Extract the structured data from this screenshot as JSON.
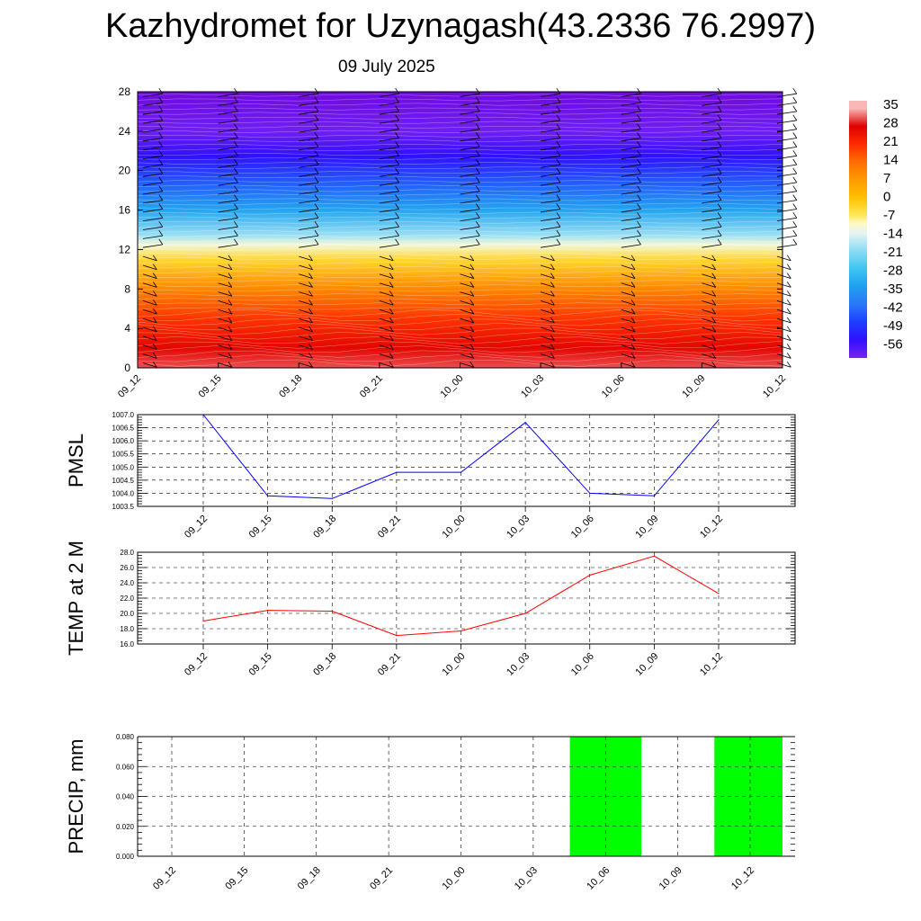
{
  "title": "Kazhydromet for Uzynagash(43.2336 76.2997)",
  "subtitle": "09 July 2025",
  "colors": {
    "pmsl_line": "#0000ff",
    "temp_line": "#ff0000",
    "precip_bar": "#00ff00"
  },
  "chart_data": [
    {
      "type": "heatmap",
      "name": "cross-section",
      "x_ticks": [
        "09_12",
        "09_15",
        "09_18",
        "09_21",
        "10_00",
        "10_03",
        "10_06",
        "10_09",
        "10_12"
      ],
      "y_ticks": [
        0,
        4,
        8,
        12,
        16,
        20,
        24,
        28
      ],
      "ylim": [
        0,
        28
      ],
      "temperature_levels_by_height": [
        {
          "height": 0,
          "value": 31
        },
        {
          "height": 2,
          "value": 27
        },
        {
          "height": 5,
          "value": 20
        },
        {
          "height": 8,
          "value": 10
        },
        {
          "height": 11,
          "value": -4
        },
        {
          "height": 12.5,
          "value": -12
        },
        {
          "height": 13.5,
          "value": -20
        },
        {
          "height": 16,
          "value": -34
        },
        {
          "height": 19,
          "value": -46
        },
        {
          "height": 21.5,
          "value": -56
        },
        {
          "height": 24,
          "value": -62
        },
        {
          "height": 28,
          "value": -68
        }
      ],
      "colorbar_labels": [
        "35",
        "28",
        "21",
        "14",
        "7",
        "0",
        "-7",
        "-14",
        "-21",
        "-28",
        "-35",
        "-42",
        "-49",
        "-56"
      ],
      "wind_barbs": "black, at every time column",
      "grid": false
    },
    {
      "type": "line",
      "ylabel": "PMSL",
      "categories": [
        "09_12",
        "09_15",
        "09_18",
        "09_21",
        "10_00",
        "10_03",
        "10_06",
        "10_09",
        "10_12"
      ],
      "values": [
        1007.0,
        1003.9,
        1003.8,
        1004.8,
        1004.8,
        1006.7,
        1004.0,
        1003.9,
        1006.8
      ],
      "ylim": [
        1003.5,
        1007.0
      ],
      "yticks": [
        "1003.5",
        "1004.0",
        "1004.5",
        "1005.0",
        "1005.5",
        "1006.0",
        "1006.5",
        "1007.0"
      ],
      "grid": true
    },
    {
      "type": "line",
      "ylabel": "TEMP at 2 M",
      "categories": [
        "09_12",
        "09_15",
        "09_18",
        "09_21",
        "10_00",
        "10_03",
        "10_06",
        "10_09",
        "10_12"
      ],
      "values": [
        19.0,
        20.4,
        20.3,
        17.1,
        17.7,
        20.0,
        25.0,
        27.5,
        22.6
      ],
      "ylim": [
        16.0,
        28.0
      ],
      "yticks": [
        "16.0",
        "18.0",
        "20.0",
        "22.0",
        "24.0",
        "26.0",
        "28.0"
      ],
      "grid": true
    },
    {
      "type": "bar",
      "ylabel": "PRECIP, mm",
      "categories": [
        "09_12",
        "09_15",
        "09_18",
        "09_21",
        "10_00",
        "10_03",
        "10_06",
        "10_09",
        "10_12"
      ],
      "values": [
        0,
        0,
        0,
        0,
        0,
        0,
        0.08,
        0,
        0.08
      ],
      "ylim": [
        0,
        0.08
      ],
      "yticks": [
        "0.000",
        "0.020",
        "0.040",
        "0.060",
        "0.080"
      ],
      "grid": true
    }
  ]
}
